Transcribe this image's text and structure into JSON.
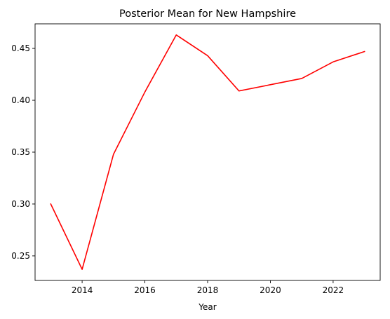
{
  "chart_data": {
    "type": "line",
    "title": "Posterior Mean for New Hampshire",
    "xlabel": "Year",
    "ylabel": "",
    "x": [
      2013,
      2014,
      2015,
      2016,
      2017,
      2018,
      2019,
      2020,
      2021,
      2022,
      2023
    ],
    "series": [
      {
        "name": "Posterior Mean",
        "color": "#ff0000",
        "values": [
          0.3,
          0.237,
          0.348,
          0.408,
          0.463,
          0.443,
          0.409,
          0.415,
          0.421,
          0.437,
          0.447
        ]
      }
    ],
    "xlim": [
      2012.5,
      2023.5
    ],
    "ylim": [
      0.2263,
      0.4737
    ],
    "xticks": [
      2014,
      2016,
      2018,
      2020,
      2022
    ],
    "xtick_labels": [
      "2014",
      "2016",
      "2018",
      "2020",
      "2022"
    ],
    "yticks": [
      0.25,
      0.3,
      0.35,
      0.4,
      0.45
    ],
    "ytick_labels": [
      "0.25",
      "0.30",
      "0.35",
      "0.40",
      "0.45"
    ],
    "grid": false
  }
}
